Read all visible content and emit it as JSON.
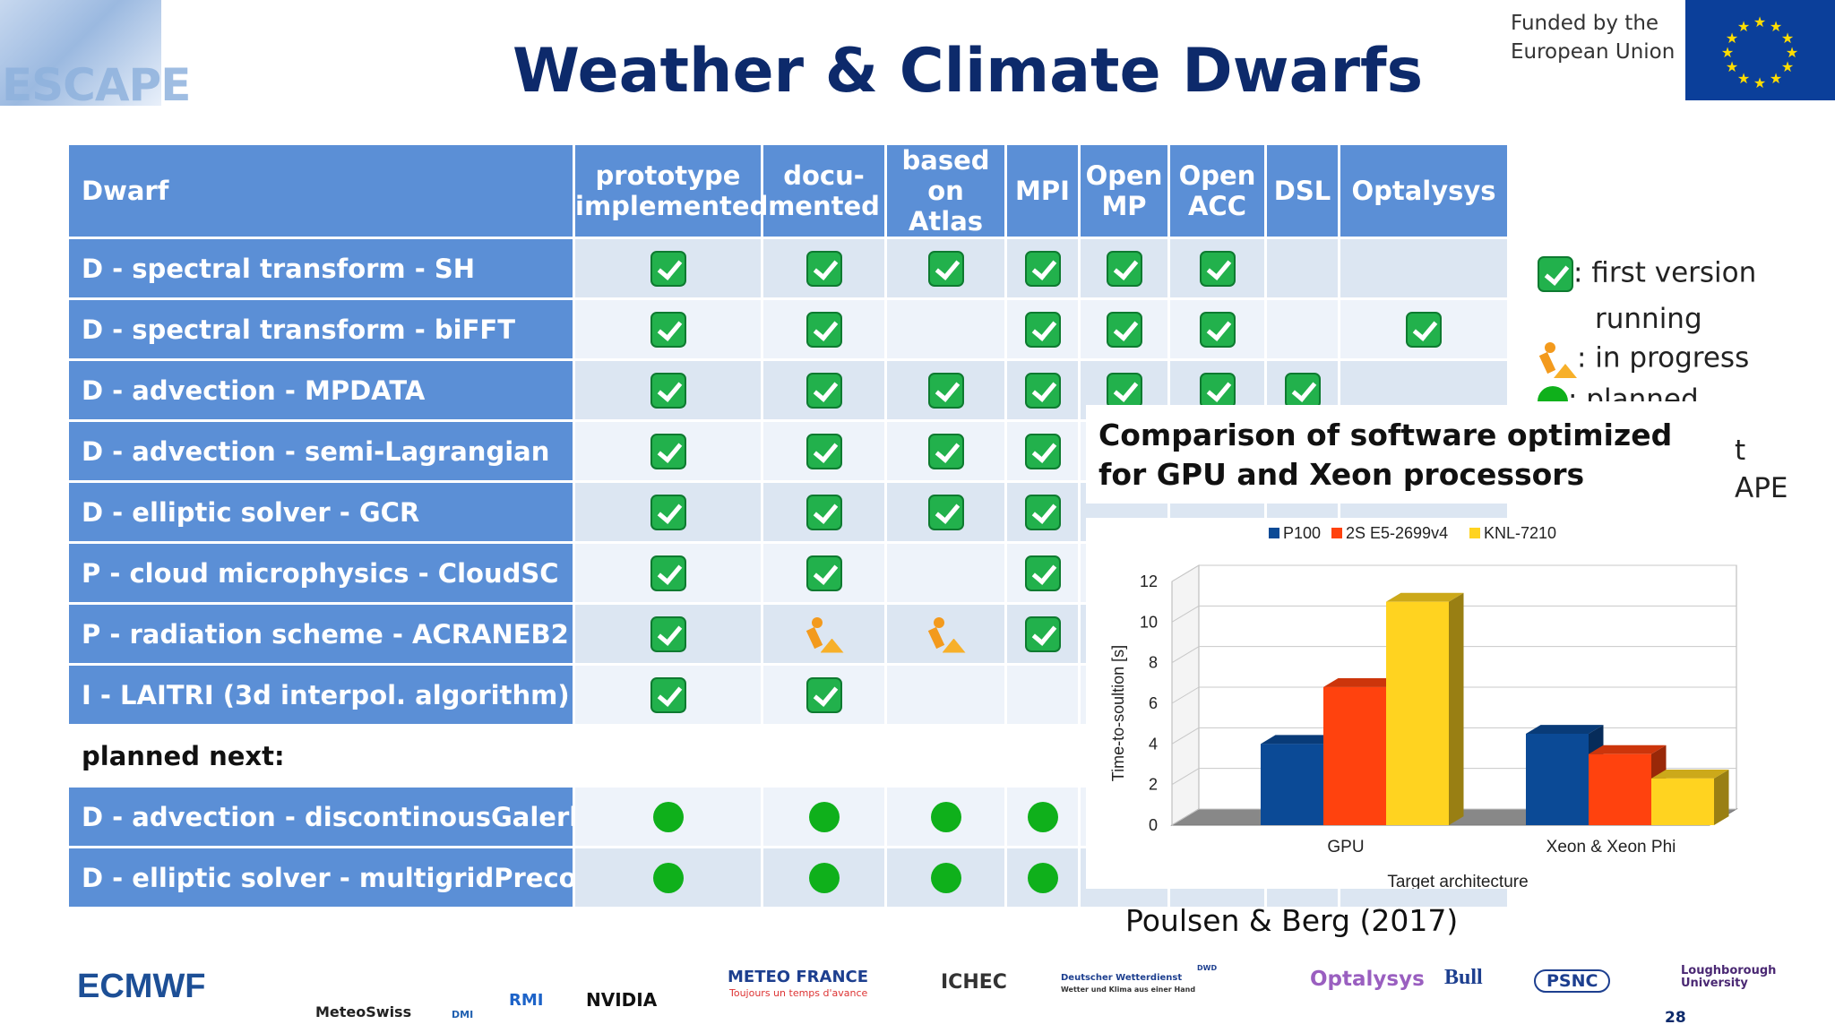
{
  "header": {
    "title": "Weather & Climate Dwarfs",
    "logo_text": "ESCAPE",
    "funding_line1": "Funded by the",
    "funding_line2": "European Union"
  },
  "table": {
    "headers": [
      "Dwarf",
      "prototype implemented",
      "docu-mented",
      "based on Atlas",
      "MPI",
      "Open MP",
      "Open ACC",
      "DSL",
      "Optalysys"
    ],
    "rows": [
      {
        "name": "D - spectral transform - SH",
        "cells": [
          "check",
          "check",
          "check",
          "check",
          "check",
          "check",
          "",
          ""
        ]
      },
      {
        "name": "D - spectral transform - biFFT",
        "cells": [
          "check",
          "check",
          "",
          "check",
          "check",
          "check",
          "",
          "check"
        ]
      },
      {
        "name": "D - advection - MPDATA",
        "cells": [
          "check",
          "check",
          "check",
          "check",
          "check",
          "check",
          "check",
          ""
        ]
      },
      {
        "name": "D - advection - semi-Lagrangian",
        "cells": [
          "check",
          "check",
          "check",
          "check",
          "",
          "",
          "",
          ""
        ]
      },
      {
        "name": "D - elliptic solver - GCR",
        "cells": [
          "check",
          "check",
          "check",
          "check",
          "",
          "",
          "",
          ""
        ]
      },
      {
        "name": "P - cloud microphysics - CloudSC",
        "cells": [
          "check",
          "check",
          "",
          "check",
          "",
          "",
          "",
          ""
        ]
      },
      {
        "name": "P - radiation scheme - ACRANEB2",
        "cells": [
          "check",
          "progress",
          "progress",
          "check",
          "",
          "",
          "",
          ""
        ]
      },
      {
        "name": "I - LAITRI (3d interpol. algorithm)",
        "cells": [
          "check",
          "check",
          "",
          "",
          "",
          "",
          "",
          ""
        ]
      }
    ],
    "section_label": "planned next:",
    "planned_rows": [
      {
        "name": "D - advection - discontinousGalerkin",
        "cells": [
          "planned",
          "planned",
          "planned",
          "planned",
          "",
          "",
          "",
          ""
        ]
      },
      {
        "name": "D - elliptic solver - multigridPrecon",
        "cells": [
          "planned",
          "planned",
          "planned",
          "planned",
          "",
          "",
          "",
          ""
        ]
      }
    ]
  },
  "legend": {
    "first_version": ": first version",
    "running": "running",
    "in_progress": ": in progress",
    "planned": ": planned",
    "tail_1": "t",
    "tail_2": "APE"
  },
  "overlay": {
    "caption": "Comparison of software optimized for GPU and Xeon processors",
    "citation": "Poulsen & Berg (2017)"
  },
  "chart_data": {
    "type": "bar",
    "categories": [
      "GPU",
      "Xeon & Xeon Phi"
    ],
    "series": [
      {
        "name": "P100",
        "values": [
          4,
          4.5
        ],
        "color": "#0b4a96"
      },
      {
        "name": "2S E5-2699v4",
        "values": [
          6.8,
          3.5
        ],
        "color": "#ff420e"
      },
      {
        "name": "KNL-7210",
        "values": [
          11,
          2.3
        ],
        "color": "#ffd320"
      }
    ],
    "ylabel": "Time-to-soultion [s]",
    "xlabel": "Target architecture",
    "ylim": [
      0,
      12
    ],
    "yticks": [
      0,
      2,
      4,
      6,
      8,
      10,
      12
    ],
    "legend_position": "top"
  },
  "footer": {
    "logos": [
      "ECMWF",
      "MeteoSwiss",
      "DMI",
      "RMI",
      "NVIDIA",
      "METEO FRANCE",
      "Toujours un temps d'avance",
      "ICHEC",
      "Deutscher Wetterdienst",
      "Wetter und Klima aus einer Hand",
      "DWD",
      "Optalysys",
      "Bull",
      "PSNC",
      "Loughborough",
      "University"
    ],
    "page_number": "28"
  },
  "colors": {
    "title": "#0d2a6b",
    "table_header": "#5b8fd6",
    "row_odd": "#dce6f2",
    "row_even": "#eef3fa",
    "check": "#22b14c",
    "planned": "#0fb01b",
    "progress": "#f39a1d"
  }
}
